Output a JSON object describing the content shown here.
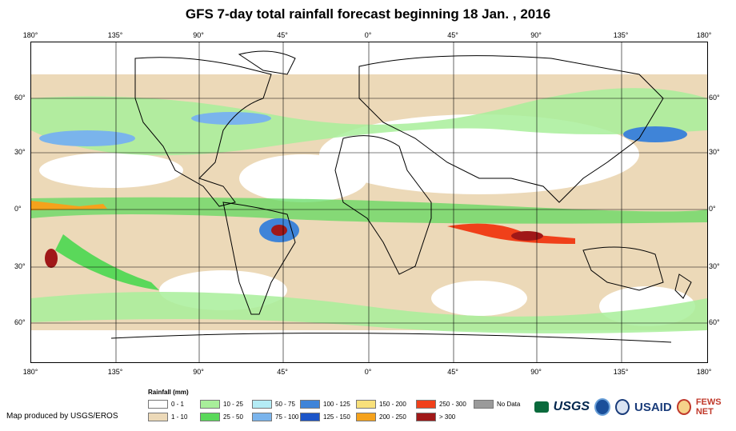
{
  "title": "GFS 7-day total rainfall forecast beginning 18 Jan. , 2016",
  "lon_ticks": [
    "180°",
    "135°",
    "90°",
    "45°",
    "0°",
    "45°",
    "90°",
    "135°",
    "180°"
  ],
  "lat_ticks": [
    "60°",
    "30°",
    "0°",
    "30°",
    "60°"
  ],
  "legend": {
    "title": "Rainfall (mm)",
    "items": [
      {
        "label": "0 - 1",
        "color": "#ffffff"
      },
      {
        "label": "1 - 10",
        "color": "#ecd9b8"
      },
      {
        "label": "10 - 25",
        "color": "#a8ee9a"
      },
      {
        "label": "25 - 50",
        "color": "#5ad85a"
      },
      {
        "label": "50 - 75",
        "color": "#b4ecf5"
      },
      {
        "label": "75 - 100",
        "color": "#7ab4ec"
      },
      {
        "label": "100 - 125",
        "color": "#3f84d8"
      },
      {
        "label": "125 - 150",
        "color": "#1c55c8"
      },
      {
        "label": "150 - 200",
        "color": "#f8e07a"
      },
      {
        "label": "200 - 250",
        "color": "#f5a21c"
      },
      {
        "label": "250 - 300",
        "color": "#f0401a"
      },
      {
        "label": "> 300",
        "color": "#a01818"
      },
      {
        "label": "No Data",
        "color": "#9a9a9a"
      }
    ]
  },
  "credit": "Map produced by USGS/EROS",
  "logos": {
    "usgs": "USGS",
    "usaid": "USAID",
    "fews": "FEWS NET"
  }
}
